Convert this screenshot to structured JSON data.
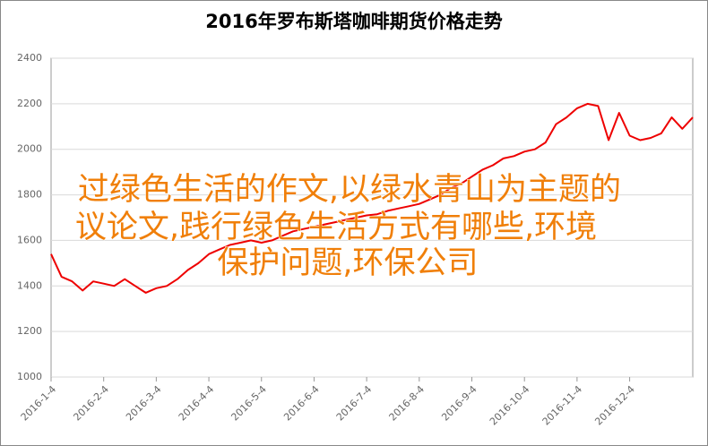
{
  "chart_data": {
    "type": "line",
    "title": "2016年罗布斯塔咖啡期货价格走势",
    "categories": [
      "2016-1-4",
      null,
      null,
      null,
      null,
      "2016-2-4",
      null,
      null,
      null,
      null,
      "2016-3-4",
      null,
      null,
      null,
      null,
      "2016-4-4",
      null,
      null,
      null,
      null,
      "2016-5-4",
      null,
      null,
      null,
      null,
      "2016-6-4",
      null,
      null,
      null,
      null,
      "2016-7-4",
      null,
      null,
      null,
      null,
      "2016-8-4",
      null,
      null,
      null,
      null,
      "2016-9-4",
      null,
      null,
      null,
      null,
      "2016-10-4",
      null,
      null,
      null,
      null,
      "2016-11-4",
      null,
      null,
      null,
      null,
      "2016-12-4",
      null,
      null,
      null,
      null,
      null,
      null
    ],
    "series": [
      {
        "color": "#ee0000",
        "values": [
          1540,
          1440,
          1420,
          1380,
          1420,
          1410,
          1400,
          1430,
          1400,
          1370,
          1390,
          1400,
          1430,
          1470,
          1500,
          1540,
          1560,
          1580,
          1590,
          1600,
          1590,
          1600,
          1620,
          1640,
          1650,
          1660,
          1670,
          1680,
          1690,
          1700,
          1710,
          1715,
          1730,
          1740,
          1750,
          1760,
          1780,
          1800,
          1830,
          1850,
          1880,
          1910,
          1930,
          1960,
          1970,
          1990,
          2000,
          2030,
          2110,
          2140,
          2180,
          2200,
          2190,
          2040,
          2160,
          2060,
          2040,
          2050,
          2070,
          2140,
          2090,
          2140
        ]
      }
    ],
    "ylim": [
      1000,
      2400
    ],
    "yticks": [
      1000,
      1200,
      1400,
      1600,
      1800,
      2000,
      2200,
      2400
    ],
    "grid": true,
    "annotation": [
      "过绿色生活的作文,以绿水青山为主题的",
      "议论文,践行绿色生活方式有哪些,环境",
      "保护问题,环保公司"
    ]
  }
}
